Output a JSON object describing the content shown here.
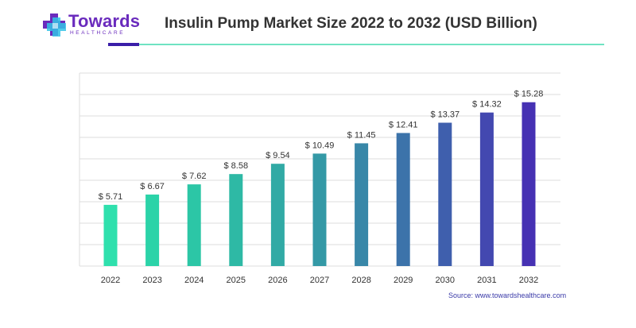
{
  "brand": {
    "name": "Towards",
    "subtitle": "HEALTHCARE",
    "colors": {
      "purple": "#6a2bbd",
      "cyan": "#33c3e6"
    }
  },
  "header": {
    "title": "Insulin Pump Market Size 2022 to 2032 (USD Billion)"
  },
  "source_text": "Source: www.towardshealthcare.com",
  "chart_data": {
    "type": "bar",
    "title": "Insulin Pump Market Size 2022 to 2032 (USD Billion)",
    "xlabel": "",
    "ylabel": "",
    "categories": [
      "2022",
      "2023",
      "2024",
      "2025",
      "2026",
      "2027",
      "2028",
      "2029",
      "2030",
      "2031",
      "2032"
    ],
    "values": [
      5.71,
      6.67,
      7.62,
      8.58,
      9.54,
      10.49,
      11.45,
      12.41,
      13.37,
      14.32,
      15.28
    ],
    "value_labels": [
      "$ 5.71",
      "$ 6.67",
      "$ 7.62",
      "$ 8.58",
      "$ 9.54",
      "$ 10.49",
      "$ 11.45",
      "$ 12.41",
      "$ 13.37",
      "$ 14.32",
      "$ 15.28"
    ],
    "ylim": [
      0,
      18
    ],
    "grid": true,
    "legend": "none",
    "bar_colors": [
      "#2fe0ad",
      "#2bd3a8",
      "#2cc6a6",
      "#2eb9a5",
      "#31aaa5",
      "#3499a6",
      "#3887a8",
      "#3c73aa",
      "#3f5fad",
      "#4348b0",
      "#4631b3"
    ]
  }
}
